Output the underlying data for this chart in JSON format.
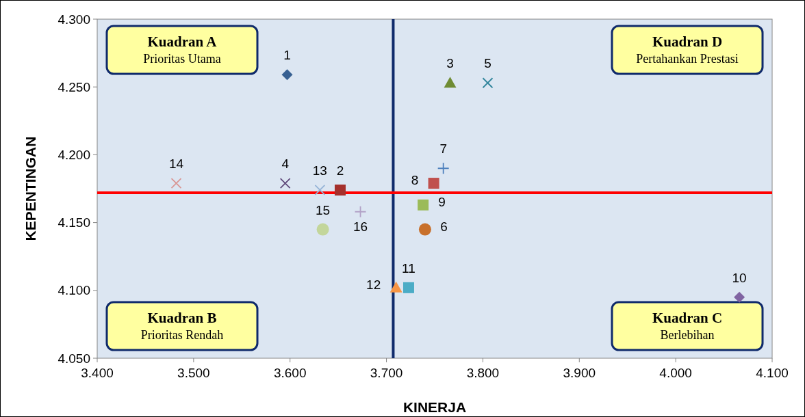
{
  "chart_data": {
    "type": "scatter",
    "xlabel": "KINERJA",
    "ylabel": "KEPENTINGAN",
    "xlim": [
      3.4,
      4.1
    ],
    "ylim": [
      4.05,
      4.3
    ],
    "xticks": [
      {
        "value": 3.4,
        "label": "3.400"
      },
      {
        "value": 3.5,
        "label": "3.500"
      },
      {
        "value": 3.6,
        "label": "3.600"
      },
      {
        "value": 3.7,
        "label": "3.700"
      },
      {
        "value": 3.8,
        "label": "3.800"
      },
      {
        "value": 3.9,
        "label": "3.900"
      },
      {
        "value": 4.0,
        "label": "4.000"
      },
      {
        "value": 4.1,
        "label": "4.100"
      }
    ],
    "yticks": [
      {
        "value": 4.05,
        "label": "4.050"
      },
      {
        "value": 4.1,
        "label": "4.100"
      },
      {
        "value": 4.15,
        "label": "4.150"
      },
      {
        "value": 4.2,
        "label": "4.200"
      },
      {
        "value": 4.25,
        "label": "4.250"
      },
      {
        "value": 4.3,
        "label": "4.300"
      }
    ],
    "grid": false,
    "ref_lines": [
      {
        "axis": "x",
        "value": 3.707,
        "color": "#0f2a6b"
      },
      {
        "axis": "y",
        "value": 4.172,
        "color": "#ff0000"
      }
    ],
    "annotations": [
      "Kuadran A\nPrioritas Utama",
      "Kuadran D\nPertahankan Prestasi",
      "Kuadran B\nPrioritas Rendah",
      "Kuadran C\nBerlebihan"
    ],
    "series": [
      {
        "name": "1",
        "color": "#376092",
        "marker": "diamond",
        "x": [
          3.597
        ],
        "values": [
          4.259
        ]
      },
      {
        "name": "2",
        "color": "#a5302c",
        "marker": "square",
        "x": [
          3.652
        ],
        "values": [
          4.174
        ]
      },
      {
        "name": "3",
        "color": "#6f8c34",
        "marker": "triangle",
        "x": [
          3.766
        ],
        "values": [
          4.253
        ]
      },
      {
        "name": "4",
        "color": "#604a7b",
        "marker": "cross",
        "x": [
          3.595
        ],
        "values": [
          4.179
        ]
      },
      {
        "name": "5",
        "color": "#31859c",
        "marker": "cross",
        "x": [
          3.805
        ],
        "values": [
          4.253
        ]
      },
      {
        "name": "6",
        "color": "#c8702b",
        "marker": "circle",
        "x": [
          3.74
        ],
        "values": [
          4.145
        ]
      },
      {
        "name": "7",
        "color": "#4f81bd",
        "marker": "plus",
        "x": [
          3.759
        ],
        "values": [
          4.19
        ]
      },
      {
        "name": "8",
        "color": "#c0504d",
        "marker": "square",
        "x": [
          3.749
        ],
        "values": [
          4.179
        ]
      },
      {
        "name": "9",
        "color": "#9bbb59",
        "marker": "square",
        "x": [
          3.738
        ],
        "values": [
          4.163
        ]
      },
      {
        "name": "10",
        "color": "#8064a2",
        "marker": "diamond",
        "x": [
          4.066
        ],
        "values": [
          4.095
        ]
      },
      {
        "name": "11",
        "color": "#4bacc6",
        "marker": "square",
        "x": [
          3.723
        ],
        "values": [
          4.102
        ]
      },
      {
        "name": "12",
        "color": "#f79646",
        "marker": "triangle",
        "x": [
          3.71
        ],
        "values": [
          4.102
        ]
      },
      {
        "name": "13",
        "color": "#95b3d7",
        "marker": "cross",
        "x": [
          3.631
        ],
        "values": [
          4.174
        ]
      },
      {
        "name": "14",
        "color": "#d99694",
        "marker": "cross",
        "x": [
          3.482
        ],
        "values": [
          4.179
        ]
      },
      {
        "name": "15",
        "color": "#c3d69b",
        "marker": "circle",
        "x": [
          3.634
        ],
        "values": [
          4.145
        ]
      },
      {
        "name": "16",
        "color": "#b2a2c7",
        "marker": "plus",
        "x": [
          3.673
        ],
        "values": [
          4.158
        ]
      }
    ]
  }
}
